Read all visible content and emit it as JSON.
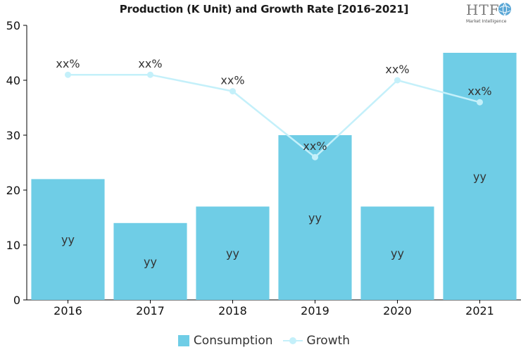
{
  "chart_data": {
    "type": "bar",
    "title": "Production (K Unit) and Growth Rate [2016-2021]",
    "categories": [
      "2016",
      "2017",
      "2018",
      "2019",
      "2020",
      "2021"
    ],
    "series": [
      {
        "name": "Consumption",
        "type": "bar",
        "values": [
          22,
          14,
          17,
          30,
          17,
          45
        ],
        "labels": [
          "yy",
          "yy",
          "yy",
          "yy",
          "yy",
          "yy"
        ],
        "color": "#6fcde6"
      },
      {
        "name": "Growth",
        "type": "line",
        "values": [
          41,
          41,
          38,
          26,
          40,
          36
        ],
        "labels": [
          "xx%",
          "xx%",
          "xx%",
          "xx%",
          "xx%",
          "xx%"
        ],
        "color": "#c4f0fa"
      }
    ],
    "y_ticks": [
      0,
      10,
      20,
      30,
      40,
      50
    ],
    "ylim": [
      0,
      50
    ],
    "grid": false,
    "legend": "bottom-center"
  },
  "logo": {
    "text": "HTF",
    "subtext": "Market Intelligence"
  }
}
